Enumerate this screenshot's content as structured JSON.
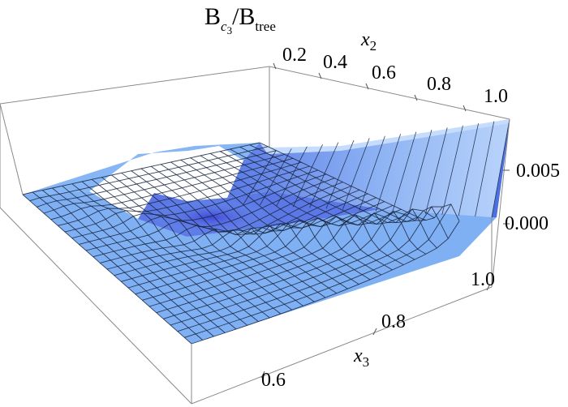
{
  "chart_data": {
    "type": "surface3d",
    "title": {
      "main": "B",
      "main_sub": "c",
      "main_subsub": "3",
      "sep": "/B",
      "den_sub": "tree"
    },
    "axes": {
      "x2": {
        "label": "x",
        "label_sub": "2",
        "ticks": [
          "0.2",
          "0.4",
          "0.6",
          "0.8",
          "1.0"
        ],
        "range": [
          0,
          1
        ]
      },
      "x3": {
        "label": "x",
        "label_sub": "3",
        "ticks": [
          "0.6",
          "0.8",
          "1.0"
        ],
        "range": [
          0.5,
          1
        ]
      },
      "z": {
        "ticks": [
          "0.005",
          "0.000"
        ],
        "range": [
          -0.003,
          0.009
        ]
      }
    },
    "surface": {
      "color": "#7fb2f5",
      "shade_dark": "#3a52c8",
      "shade_light": "#cfe3ff",
      "mesh_color": "#16233d",
      "grid_lines": 24,
      "description_values": {
        "plateau_level": 0.002,
        "ridge_max_near_x2_1_x3_1": 0.008,
        "valley_min_near_center": -0.002
      }
    }
  }
}
